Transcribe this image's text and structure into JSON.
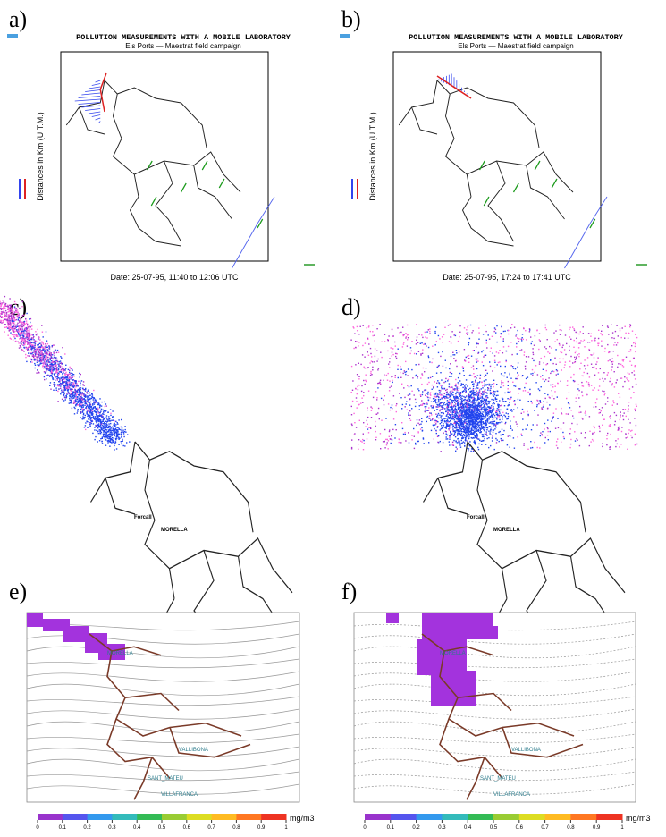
{
  "panels": [
    {
      "label": "a)",
      "title": "POLLUTION MEASUREMENTS WITH A MOBILE LABORATORY",
      "subtitle": "Els Ports — Maestrat field campaign",
      "ylabel": "Distances in Km (U.T.M.)",
      "date": "Date:  25-07-95,   11:40 to 12:06 UTC"
    },
    {
      "label": "b)",
      "title": "POLLUTION MEASUREMENTS WITH A MOBILE LABORATORY",
      "subtitle": "Els Ports — Maestrat field campaign",
      "ylabel": "Distances in Km (U.T.M.)",
      "date": "Date:  25-07-95,   17:24 to 17:41 UTC"
    },
    {
      "label": "c)",
      "towns": [
        "Forcall",
        "MORELLA"
      ]
    },
    {
      "label": "d)",
      "towns": [
        "Forcall",
        "MORELLA"
      ]
    },
    {
      "label": "e)",
      "unit": "mg/m3",
      "colorbar_ticks": [
        0,
        0.1,
        0.2,
        0.3,
        0.4,
        0.5,
        0.6,
        0.7,
        0.8,
        0.9,
        1
      ],
      "towns": [
        "MORELLA",
        "VALLIBONA",
        "SANT_MATEU",
        "VILLAFRANCA"
      ]
    },
    {
      "label": "f)",
      "unit": "mg/m3",
      "colorbar_ticks": [
        0,
        0.1,
        0.2,
        0.3,
        0.4,
        0.5,
        0.6,
        0.7,
        0.8,
        0.9,
        1
      ],
      "towns": [
        "MORELLA",
        "VALLIBONA",
        "SANT_MATEU",
        "VILLAFRANCA"
      ]
    }
  ]
}
